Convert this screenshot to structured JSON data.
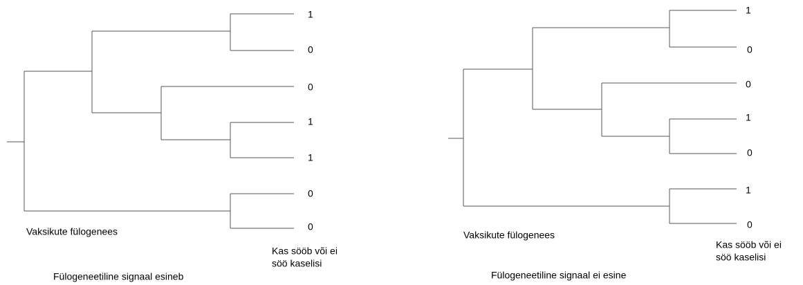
{
  "trees": [
    {
      "leaves": [
        1,
        0,
        0,
        1,
        1,
        0,
        0
      ],
      "tree_label": "Vaksikute fülogenees",
      "trait_label": [
        "Kas sööb või ei",
        "söö kaselisi"
      ],
      "caption": "Fülogeneetiline signaal esineb"
    },
    {
      "leaves": [
        1,
        0,
        0,
        1,
        0,
        1,
        0
      ],
      "tree_label": "Vaksikute fülogenees",
      "trait_label": [
        "Kas sööb või ei",
        "söö kaselisi"
      ],
      "caption": "Fülogeneetiline signaal ei esine"
    }
  ]
}
